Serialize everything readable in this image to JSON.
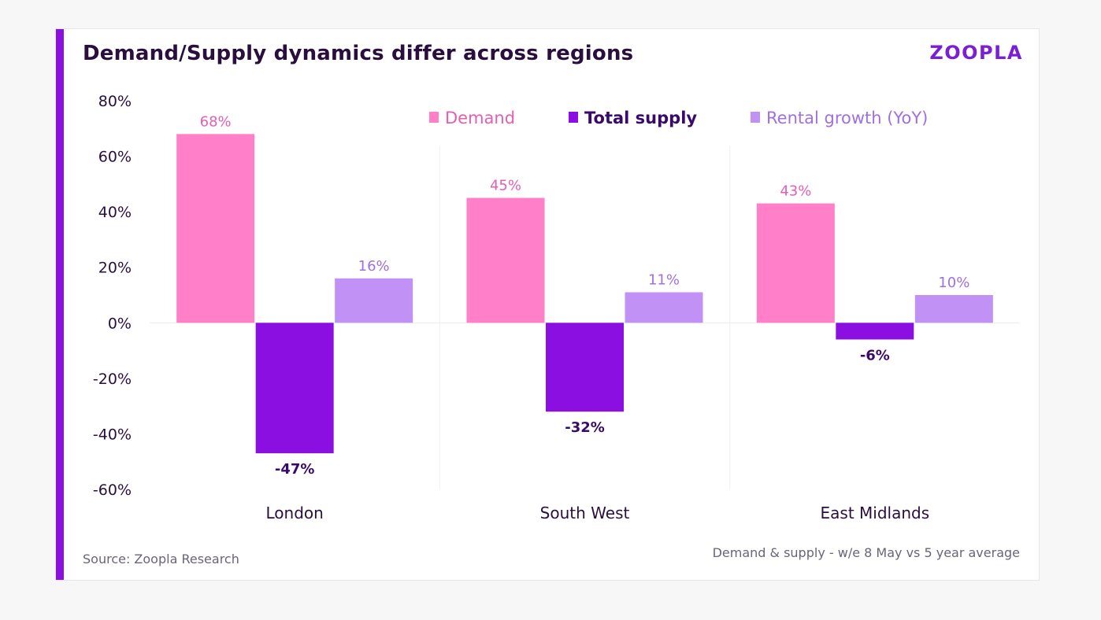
{
  "header": {
    "title": "Demand/Supply dynamics differ across regions",
    "logo_text": "ZOOPLA"
  },
  "footer": {
    "source": "Source: Zoopla Research",
    "note": "Demand & supply - w/e 8 May vs 5 year average"
  },
  "colors": {
    "accent": "#8a0fe0",
    "demand": "#ff7fc9",
    "total_supply": "#8a0fe0",
    "rental_growth": "#c191f5",
    "demand_label": "#e45fb3",
    "supply_label": "#3a0a6a",
    "rental_label": "#a070e0",
    "logo": "#7a1fd6"
  },
  "chart_data": {
    "type": "bar",
    "title": "Demand/Supply dynamics differ across regions",
    "categories": [
      "London",
      "South West",
      "East Midlands"
    ],
    "series": [
      {
        "name": "Demand",
        "values": [
          68,
          45,
          43
        ],
        "labels": [
          "68%",
          "45%",
          "43%"
        ]
      },
      {
        "name": "Total supply",
        "values": [
          -47,
          -32,
          -6
        ],
        "labels": [
          "-47%",
          "-32%",
          "-6%"
        ]
      },
      {
        "name": "Rental growth (YoY)",
        "values": [
          16,
          11,
          10
        ],
        "labels": [
          "16%",
          "11%",
          "10%"
        ]
      }
    ],
    "y_ticks": [
      "80%",
      "60%",
      "40%",
      "20%",
      "0%",
      "-20%",
      "-40%",
      "-60%"
    ],
    "y_tick_values": [
      80,
      60,
      40,
      20,
      0,
      -20,
      -40,
      -60
    ],
    "ylim": [
      -60,
      80
    ],
    "legend_position": "top-right",
    "grid": false
  }
}
